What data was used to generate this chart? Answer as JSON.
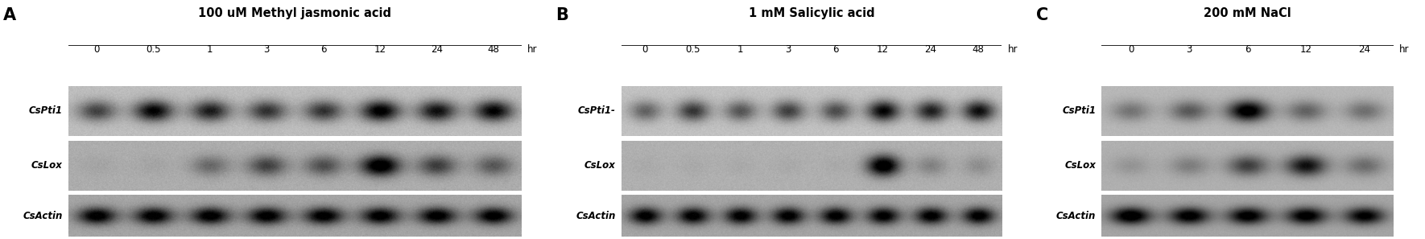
{
  "panels": [
    {
      "label": "A",
      "title": "100 uM Methyl jasmonic acid",
      "time_points": [
        "0",
        "0.5",
        "1",
        "3",
        "6",
        "12",
        "24",
        "48"
      ],
      "genes": [
        "CsPti1",
        "CsLox",
        "CsActin"
      ],
      "bands": {
        "CsPti1": [
          0.55,
          0.85,
          0.72,
          0.62,
          0.62,
          0.9,
          0.78,
          0.85
        ],
        "CsLox": [
          0.04,
          0.04,
          0.3,
          0.48,
          0.42,
          0.92,
          0.5,
          0.38
        ],
        "CsActin": [
          0.82,
          0.82,
          0.82,
          0.82,
          0.82,
          0.82,
          0.82,
          0.82
        ]
      },
      "row_bg": {
        "CsPti1": "#bebebe",
        "CsLox": "#adadad",
        "CsActin": "#a5a5a5"
      }
    },
    {
      "label": "B",
      "title": "1 mM Salicylic acid",
      "time_points": [
        "0",
        "0.5",
        "1",
        "3",
        "6",
        "12",
        "24",
        "48"
      ],
      "genes": [
        "CsPti1-",
        "CsLox",
        "CsActin"
      ],
      "bands": {
        "CsPti1-": [
          0.42,
          0.62,
          0.48,
          0.58,
          0.52,
          0.85,
          0.72,
          0.8
        ],
        "CsLox": [
          0.03,
          0.03,
          0.03,
          0.03,
          0.03,
          0.93,
          0.2,
          0.15
        ],
        "CsActin": [
          0.8,
          0.8,
          0.8,
          0.8,
          0.8,
          0.8,
          0.8,
          0.8
        ]
      },
      "row_bg": {
        "CsPti1-": "#c2c2c2",
        "CsLox": "#b0b0b0",
        "CsActin": "#a5a5a5"
      }
    },
    {
      "label": "C",
      "title": "200 mM NaCl",
      "time_points": [
        "0",
        "3",
        "6",
        "12",
        "24"
      ],
      "genes": [
        "CsPti1",
        "CsLox",
        "CsActin"
      ],
      "bands": {
        "CsPti1": [
          0.3,
          0.42,
          0.92,
          0.38,
          0.32
        ],
        "CsLox": [
          0.12,
          0.22,
          0.5,
          0.72,
          0.3
        ],
        "CsActin": [
          0.88,
          0.82,
          0.82,
          0.82,
          0.78
        ]
      },
      "row_bg": {
        "CsPti1": "#b8b8b8",
        "CsLox": "#b0b0b0",
        "CsActin": "#a5a5a5"
      }
    }
  ],
  "background_color": "#ffffff",
  "label_fontsize": 15,
  "title_fontsize": 10.5,
  "gene_fontsize": 8.5,
  "time_fontsize": 8.5,
  "hr_fontsize": 8.5
}
